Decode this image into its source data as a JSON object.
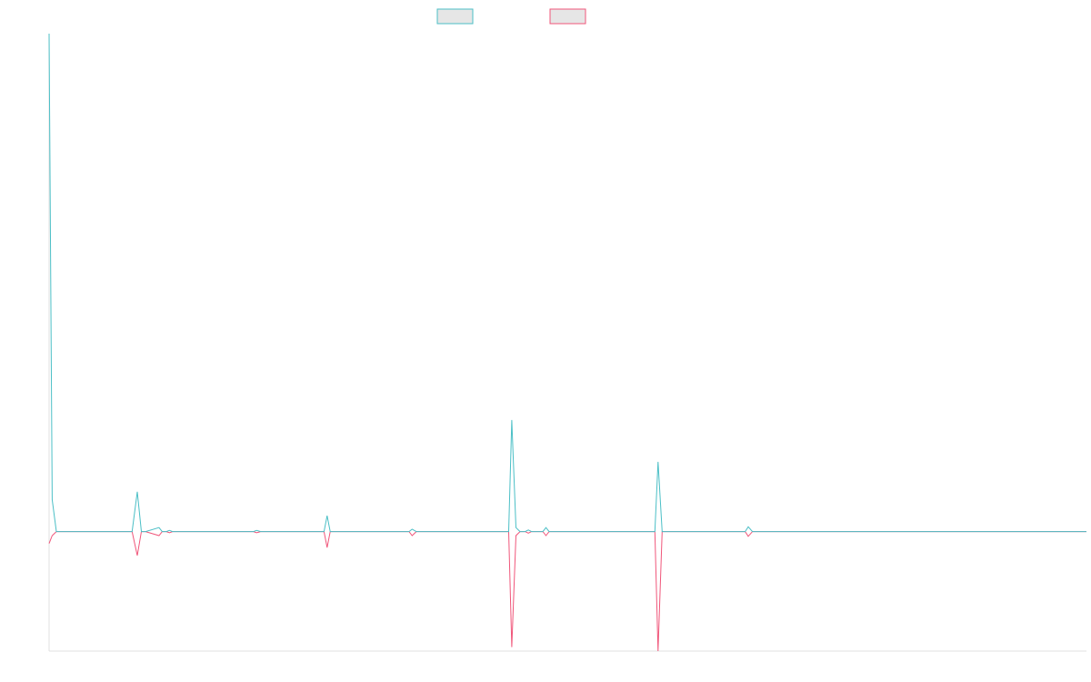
{
  "chart_data": {
    "type": "line",
    "title": "",
    "xlabel": "",
    "ylabel": "",
    "grid": false,
    "legend_position": "top-center",
    "xlim": [
      0,
      100
    ],
    "ylim": [
      -30,
      125
    ],
    "series": [
      {
        "name": "",
        "color": "#4bbfc6",
        "points": [
          [
            0,
            125
          ],
          [
            0.3,
            8
          ],
          [
            0.7,
            0
          ],
          [
            8,
            0
          ],
          [
            8.5,
            10
          ],
          [
            8.9,
            0
          ],
          [
            9.3,
            0
          ],
          [
            10.6,
            1
          ],
          [
            10.9,
            0
          ],
          [
            11.3,
            0
          ],
          [
            11.6,
            0.3
          ],
          [
            11.9,
            0
          ],
          [
            12.2,
            0
          ],
          [
            19.7,
            0
          ],
          [
            20.0,
            0.3
          ],
          [
            20.4,
            0
          ],
          [
            26.5,
            0
          ],
          [
            26.8,
            4
          ],
          [
            27.1,
            0
          ],
          [
            27.5,
            0
          ],
          [
            34.7,
            0
          ],
          [
            35.0,
            0.6
          ],
          [
            35.4,
            0
          ],
          [
            44.3,
            0
          ],
          [
            44.6,
            28
          ],
          [
            45.0,
            1
          ],
          [
            45.4,
            0
          ],
          [
            45.9,
            0
          ],
          [
            46.2,
            0.4
          ],
          [
            46.5,
            0
          ],
          [
            47.6,
            0
          ],
          [
            47.9,
            1
          ],
          [
            48.2,
            0
          ],
          [
            58.4,
            0
          ],
          [
            58.7,
            17.5
          ],
          [
            59.1,
            0
          ],
          [
            67.1,
            0
          ],
          [
            67.4,
            1.2
          ],
          [
            67.8,
            0
          ],
          [
            100,
            0
          ]
        ]
      },
      {
        "name": "",
        "color": "#f0567a",
        "points": [
          [
            0,
            -3
          ],
          [
            0.3,
            -1
          ],
          [
            0.7,
            0
          ],
          [
            8,
            0
          ],
          [
            8.5,
            -6
          ],
          [
            8.9,
            0
          ],
          [
            9.3,
            0
          ],
          [
            10.6,
            -1
          ],
          [
            10.9,
            0
          ],
          [
            11.3,
            0
          ],
          [
            11.6,
            -0.3
          ],
          [
            11.9,
            0
          ],
          [
            12.2,
            0
          ],
          [
            19.7,
            0
          ],
          [
            20.0,
            -0.3
          ],
          [
            20.4,
            0
          ],
          [
            26.5,
            0
          ],
          [
            26.8,
            -4
          ],
          [
            27.1,
            0
          ],
          [
            27.5,
            0
          ],
          [
            34.7,
            0
          ],
          [
            35.0,
            -1
          ],
          [
            35.4,
            0
          ],
          [
            44.3,
            0
          ],
          [
            44.6,
            -29
          ],
          [
            45.0,
            -1
          ],
          [
            45.4,
            0
          ],
          [
            45.9,
            0
          ],
          [
            46.2,
            -0.4
          ],
          [
            46.5,
            0
          ],
          [
            47.6,
            0
          ],
          [
            47.9,
            -1
          ],
          [
            48.2,
            0
          ],
          [
            58.4,
            0
          ],
          [
            58.7,
            -30
          ],
          [
            59.1,
            0
          ],
          [
            67.1,
            0
          ],
          [
            67.4,
            -1.2
          ],
          [
            67.8,
            0
          ],
          [
            100,
            0
          ]
        ]
      }
    ]
  }
}
